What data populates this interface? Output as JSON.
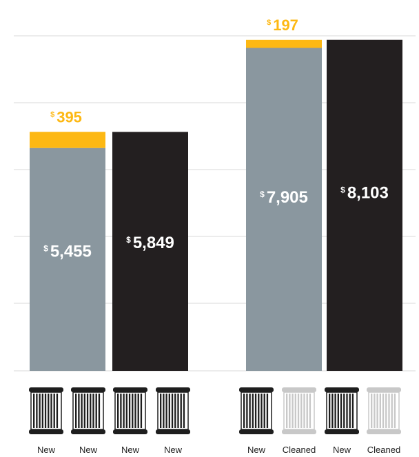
{
  "chart_data": {
    "type": "bar",
    "stacked": true,
    "currency_symbol": "$",
    "ylim": [
      0,
      8200
    ],
    "grid": true,
    "groups": [
      {
        "bars": [
          {
            "segments": [
              {
                "value": 5455,
                "label": "5,455",
                "color": "#8a979f"
              },
              {
                "value": 395,
                "label": "395",
                "color": "#fdb813"
              }
            ]
          },
          {
            "segments": [
              {
                "value": 5849,
                "label": "5,849",
                "color": "#231f20"
              }
            ]
          }
        ],
        "filters": [
          {
            "label": "New",
            "state": "new"
          },
          {
            "label": "New",
            "state": "new"
          },
          {
            "label": "New",
            "state": "new"
          },
          {
            "label": "New",
            "state": "new"
          }
        ]
      },
      {
        "bars": [
          {
            "segments": [
              {
                "value": 7905,
                "label": "7,905",
                "color": "#8a979f"
              },
              {
                "value": 197,
                "label": "197",
                "color": "#fdb813"
              }
            ]
          },
          {
            "segments": [
              {
                "value": 8103,
                "label": "8,103",
                "color": "#231f20"
              }
            ]
          }
        ],
        "filters": [
          {
            "label": "New",
            "state": "new"
          },
          {
            "label": "Cleaned",
            "state": "cleaned"
          },
          {
            "label": "New",
            "state": "new"
          },
          {
            "label": "Cleaned",
            "state": "cleaned"
          }
        ]
      }
    ]
  },
  "colors": {
    "gray": "#8a979f",
    "yellow": "#fdb813",
    "black": "#231f20",
    "grid": "#d9d9d9",
    "filter_new": "#1e1e1e",
    "filter_cleaned": "#c8c8c8"
  },
  "icons": {
    "filter": "air-filter-icon"
  }
}
